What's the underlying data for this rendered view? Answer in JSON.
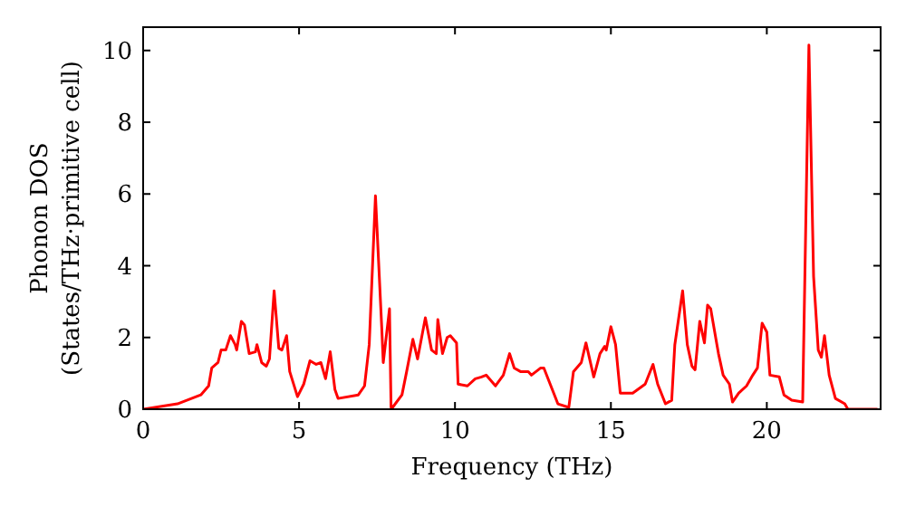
{
  "chart_data": {
    "type": "line",
    "xlabel": "Frequency (THz)",
    "ylabel": "Phonon DOS\n(States/THz·primitive cell)",
    "xlim": [
      0,
      23.65
    ],
    "ylim": [
      0,
      10.65
    ],
    "xticks": [
      0,
      5,
      10,
      15,
      20
    ],
    "yticks": [
      0,
      2,
      4,
      6,
      8,
      10
    ],
    "grid": false,
    "marker": "none",
    "line_style": "solid",
    "series": [
      {
        "color": "#ff0000",
        "x": [
          0,
          1.1,
          1.85,
          2.1,
          2.2,
          2.4,
          2.5,
          2.65,
          2.8,
          2.95,
          3.0,
          3.15,
          3.25,
          3.4,
          3.6,
          3.65,
          3.8,
          3.95,
          4.05,
          4.2,
          4.35,
          4.45,
          4.6,
          4.7,
          4.95,
          5.15,
          5.35,
          5.55,
          5.7,
          5.85,
          6.0,
          6.15,
          6.25,
          6.9,
          7.1,
          7.25,
          7.45,
          7.65,
          7.7,
          7.9,
          7.95,
          8.0,
          8.3,
          8.45,
          8.65,
          8.8,
          9.05,
          9.25,
          9.4,
          9.45,
          9.6,
          9.75,
          9.85,
          10.05,
          10.1,
          10.4,
          10.65,
          10.85,
          11.0,
          11.3,
          11.55,
          11.75,
          11.9,
          12.1,
          12.35,
          12.45,
          12.75,
          12.85,
          13.3,
          13.65,
          13.8,
          14.05,
          14.2,
          14.45,
          14.65,
          14.8,
          14.85,
          15.0,
          15.15,
          15.3,
          15.7,
          16.1,
          16.35,
          16.5,
          16.75,
          16.95,
          17.05,
          17.3,
          17.45,
          17.6,
          17.7,
          17.85,
          18.0,
          18.1,
          18.2,
          18.4,
          18.45,
          18.6,
          18.8,
          18.9,
          19.1,
          19.35,
          19.55,
          19.7,
          19.85,
          20.0,
          20.1,
          20.4,
          20.55,
          20.8,
          21.15,
          21.35,
          21.5,
          21.65,
          21.75,
          21.85,
          22.0,
          22.2,
          22.5,
          22.6,
          23.55
        ],
        "values": [
          0,
          0.15,
          0.4,
          0.65,
          1.15,
          1.3,
          1.65,
          1.65,
          2.05,
          1.8,
          1.65,
          2.45,
          2.35,
          1.55,
          1.6,
          1.8,
          1.3,
          1.2,
          1.4,
          3.3,
          1.7,
          1.65,
          2.05,
          1.05,
          0.35,
          0.7,
          1.35,
          1.25,
          1.3,
          0.85,
          1.6,
          0.55,
          0.3,
          0.4,
          0.65,
          1.8,
          5.95,
          2.3,
          1.3,
          2.8,
          0.05,
          0.05,
          0.4,
          1.05,
          1.95,
          1.4,
          2.55,
          1.65,
          1.55,
          2.5,
          1.55,
          2.0,
          2.05,
          1.85,
          0.7,
          0.65,
          0.85,
          0.9,
          0.95,
          0.65,
          0.95,
          1.55,
          1.15,
          1.05,
          1.05,
          0.95,
          1.15,
          1.15,
          0.15,
          0.05,
          1.05,
          1.3,
          1.85,
          0.9,
          1.55,
          1.75,
          1.65,
          2.3,
          1.8,
          0.45,
          0.45,
          0.7,
          1.25,
          0.7,
          0.15,
          0.25,
          1.8,
          3.3,
          1.8,
          1.2,
          1.1,
          2.45,
          1.85,
          2.9,
          2.8,
          1.8,
          1.55,
          0.95,
          0.7,
          0.2,
          0.45,
          0.65,
          0.95,
          1.15,
          2.4,
          2.15,
          0.95,
          0.9,
          0.4,
          0.25,
          0.2,
          10.15,
          3.7,
          1.65,
          1.45,
          2.05,
          0.95,
          0.3,
          0.15,
          0,
          0
        ]
      }
    ]
  }
}
